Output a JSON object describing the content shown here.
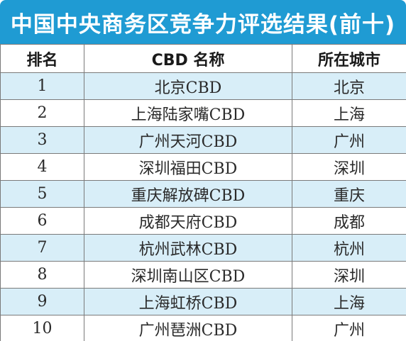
{
  "title": "中国中央商务区竞争力评选结果(前十)",
  "colors": {
    "title_bg": "#1f9bd3",
    "stripe": "#d8eef8",
    "border": "#7a7a7a"
  },
  "table": {
    "headers": [
      "排名",
      "CBD 名称",
      "所在城市"
    ],
    "rows": [
      {
        "rank": "1",
        "name": "北京CBD",
        "city": "北京"
      },
      {
        "rank": "2",
        "name": "上海陆家嘴CBD",
        "city": "上海"
      },
      {
        "rank": "3",
        "name": "广州天河CBD",
        "city": "广州"
      },
      {
        "rank": "4",
        "name": "深圳福田CBD",
        "city": "深圳"
      },
      {
        "rank": "5",
        "name": "重庆解放碑CBD",
        "city": "重庆"
      },
      {
        "rank": "6",
        "name": "成都天府CBD",
        "city": "成都"
      },
      {
        "rank": "7",
        "name": "杭州武林CBD",
        "city": "杭州"
      },
      {
        "rank": "8",
        "name": "深圳南山区CBD",
        "city": "深圳"
      },
      {
        "rank": "9",
        "name": "上海虹桥CBD",
        "city": "上海"
      },
      {
        "rank": "10",
        "name": "广州琶洲CBD",
        "city": "广州"
      }
    ]
  }
}
